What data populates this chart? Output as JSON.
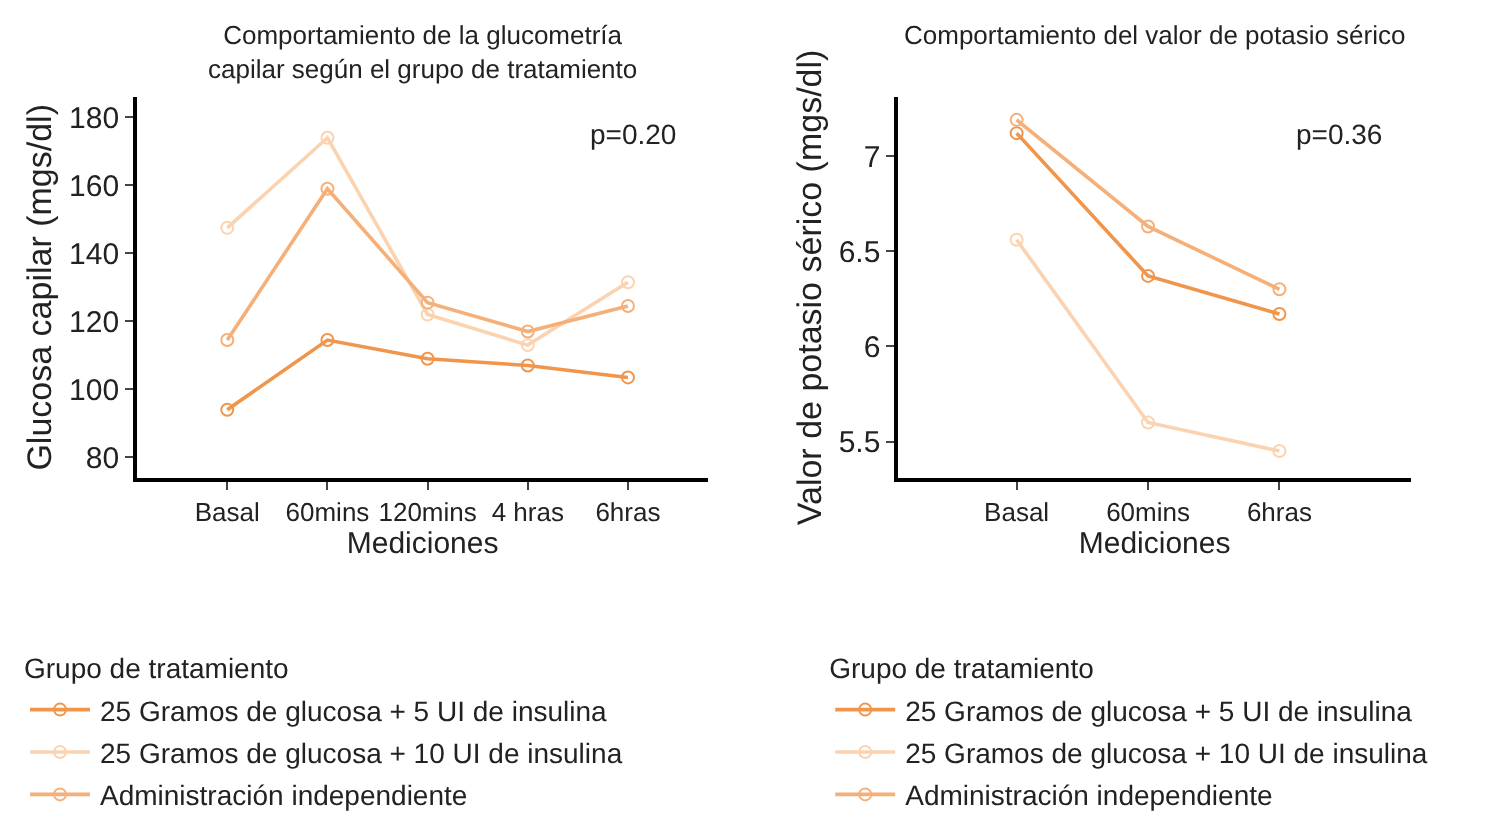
{
  "chart_data": [
    {
      "type": "line",
      "title": "Comportamiento de la glucometría\ncapilar según el grupo de tratamiento",
      "xlabel": "Mediciones",
      "ylabel": "Glucosa capilar (mgs/dl)",
      "categories": [
        "Basal",
        "60mins",
        "120mins",
        "4 hras",
        "6hras"
      ],
      "series": [
        {
          "name": "25 Gramos de glucosa + 5 UI de insulina",
          "color": "#f0954a",
          "values": [
            94,
            114.5,
            109,
            107,
            103.5
          ]
        },
        {
          "name": "25 Gramos de glucosa + 10 UI de insulina",
          "color": "#fbd3b0",
          "values": [
            147.5,
            174,
            122,
            113,
            131.5
          ]
        },
        {
          "name": "Administración independiente",
          "color": "#f5b07a",
          "values": [
            114.5,
            159,
            125.5,
            117,
            124.5
          ]
        }
      ],
      "ylim": [
        74,
        186
      ],
      "yticks": [
        80,
        100,
        120,
        140,
        160,
        180
      ],
      "legend": "bottom",
      "legend_title": "Grupo de tratamiento",
      "marker": "circle",
      "annotations": [
        "p=0.20"
      ]
    },
    {
      "type": "line",
      "title": "Comportamiento del valor de potasio sérico",
      "xlabel": "Mediciones",
      "ylabel": "Valor de potasio sérico (mgs/dl)",
      "categories": [
        "Basal",
        "60mins",
        "6hras"
      ],
      "series": [
        {
          "name": "25 Gramos de glucosa + 5 UI de insulina",
          "color": "#f0954a",
          "values": [
            7.12,
            6.37,
            6.17
          ]
        },
        {
          "name": "25 Gramos de glucosa + 10 UI de insulina",
          "color": "#fbd3b0",
          "values": [
            6.56,
            5.6,
            5.45
          ]
        },
        {
          "name": "Administración independiente",
          "color": "#f5b07a",
          "values": [
            7.19,
            6.63,
            6.3
          ]
        }
      ],
      "ylim": [
        5.31,
        7.31
      ],
      "yticks": [
        5.5,
        6,
        6.5,
        7
      ],
      "legend": "bottom",
      "legend_title": "Grupo de tratamiento",
      "marker": "circle",
      "annotations": [
        "p=0.36"
      ]
    }
  ]
}
